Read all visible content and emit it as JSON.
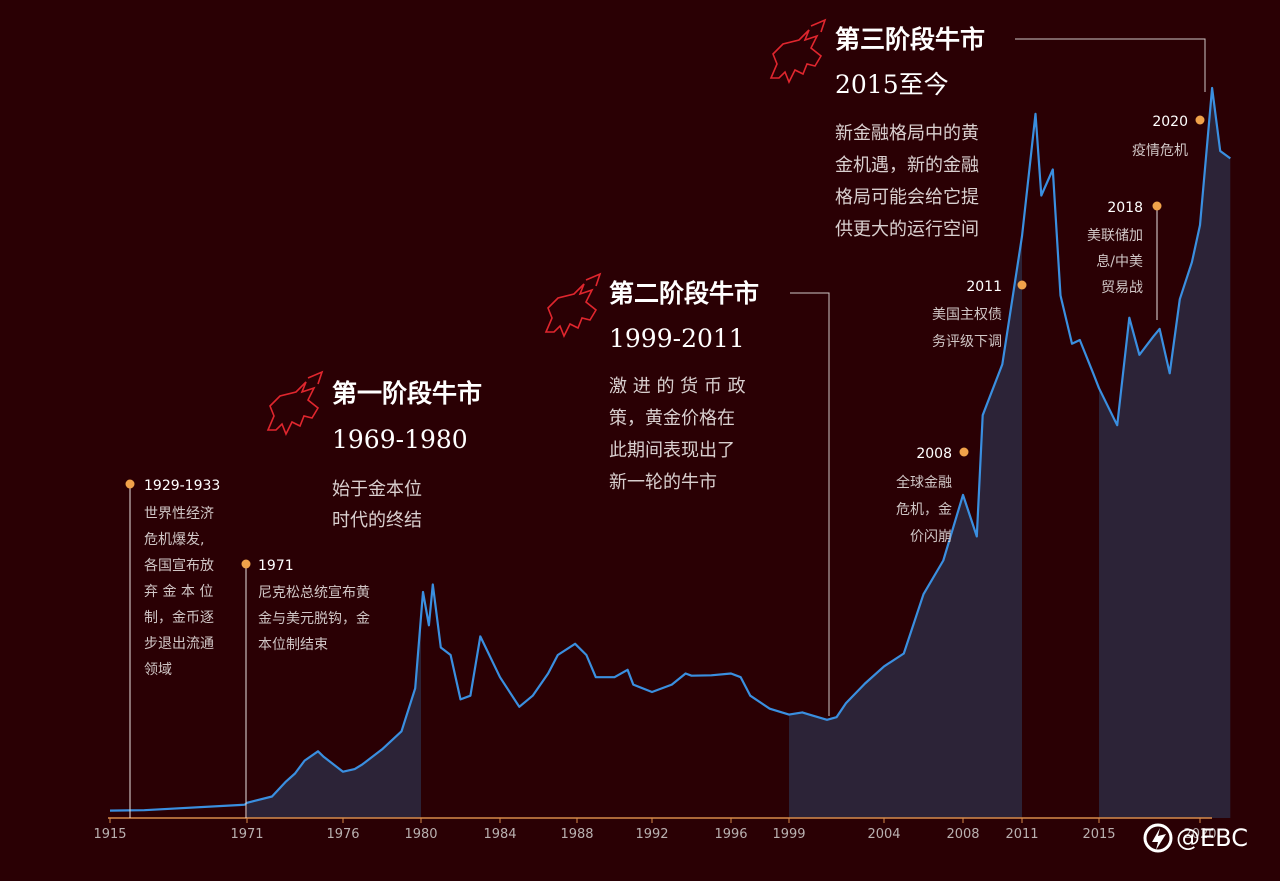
{
  "chart_data": {
    "type": "area",
    "title": "",
    "xlabel": "",
    "ylabel": "",
    "x_ticks": [
      "1915",
      "1971",
      "1976",
      "1980",
      "1984",
      "1988",
      "1992",
      "1996",
      "1999",
      "2004",
      "2008",
      "2011",
      "2015",
      "2020"
    ],
    "series": [
      {
        "values": [
          [
            "1915",
            20
          ],
          [
            "1929",
            21
          ],
          [
            "1968",
            35
          ],
          [
            "1970",
            36
          ],
          [
            "1971",
            41
          ],
          [
            "1972.3",
            58
          ],
          [
            "1973",
            97
          ],
          [
            "1973.5",
            120
          ],
          [
            "1974",
            155
          ],
          [
            "1974.7",
            180
          ],
          [
            "1975",
            165
          ],
          [
            "1976",
            125
          ],
          [
            "1976.6",
            132
          ],
          [
            "1977",
            145
          ],
          [
            "1978",
            185
          ],
          [
            "1979",
            234
          ],
          [
            "1979.7",
            350
          ],
          [
            "1980.1",
            610
          ],
          [
            "1980.4",
            520
          ],
          [
            "1980.6",
            630
          ],
          [
            "1981",
            460
          ],
          [
            "1981.5",
            440
          ],
          [
            "1982",
            320
          ],
          [
            "1982.5",
            330
          ],
          [
            "1983",
            490
          ],
          [
            "1984",
            380
          ],
          [
            "1985",
            300
          ],
          [
            "1985.7",
            330
          ],
          [
            "1986.5",
            390
          ],
          [
            "1987",
            440
          ],
          [
            "1987.9",
            470
          ],
          [
            "1988.5",
            440
          ],
          [
            "1989",
            380
          ],
          [
            "1990",
            380
          ],
          [
            "1990.7",
            400
          ],
          [
            "1991",
            360
          ],
          [
            "1992",
            340
          ],
          [
            "1993",
            360
          ],
          [
            "1993.7",
            390
          ],
          [
            "1994",
            384
          ],
          [
            "1995",
            385
          ],
          [
            "1996",
            390
          ],
          [
            "1996.5",
            380
          ],
          [
            "1997",
            330
          ],
          [
            "1998",
            295
          ],
          [
            "1999",
            279
          ],
          [
            "1999.7",
            285
          ],
          [
            "2000",
            280
          ],
          [
            "2001",
            265
          ],
          [
            "2001.5",
            272
          ],
          [
            "2002",
            310
          ],
          [
            "2003",
            363
          ],
          [
            "2004",
            409
          ],
          [
            "2005",
            444
          ],
          [
            "2006",
            604
          ],
          [
            "2007",
            695
          ],
          [
            "2008",
            872
          ],
          [
            "2008.7",
            760
          ],
          [
            "2009",
            1087
          ],
          [
            "2010",
            1224
          ],
          [
            "2011",
            1570
          ],
          [
            "2011.7",
            1900
          ],
          [
            "2012",
            1680
          ],
          [
            "2012.6",
            1750
          ],
          [
            "2013",
            1410
          ],
          [
            "2013.6",
            1280
          ],
          [
            "2014",
            1290
          ],
          [
            "2014.7",
            1200
          ],
          [
            "2015",
            1160
          ],
          [
            "2015.9",
            1060
          ],
          [
            "2016.5",
            1350
          ],
          [
            "2017",
            1250
          ],
          [
            "2017.7",
            1300
          ],
          [
            "2018",
            1320
          ],
          [
            "2018.5",
            1200
          ],
          [
            "2019",
            1400
          ],
          [
            "2019.6",
            1500
          ],
          [
            "2020",
            1600
          ],
          [
            "2020.6",
            1970
          ],
          [
            "2021",
            1800
          ],
          [
            "2021.5",
            1780
          ]
        ]
      }
    ],
    "highlight_ranges": [
      [
        "1971",
        "1980"
      ],
      [
        "1999",
        "2011"
      ],
      [
        "2015",
        "2021.5"
      ]
    ]
  },
  "phases": [
    {
      "title": "第一阶段牛市",
      "years": "1969-1980",
      "desc": [
        "始于金本位",
        "时代的终结"
      ]
    },
    {
      "title": "第二阶段牛市",
      "years": "1999-2011",
      "desc": [
        "激 进 的 货 币 政",
        "策，黄金价格在",
        "此期间表现出了",
        "新一轮的牛市"
      ]
    },
    {
      "title": "第三阶段牛市",
      "years": "2015至今",
      "desc": [
        "新金融格局中的黄",
        "金机遇，新的金融",
        "格局可能会给它提",
        "供更大的运行空间"
      ]
    }
  ],
  "events": [
    {
      "year": "1929-1933",
      "lines": [
        "世界性经济",
        "危机爆发,",
        "各国宣布放",
        "弃 金 本 位",
        "制，金币逐",
        "步退出流通",
        "领域"
      ]
    },
    {
      "year": "1971",
      "lines": [
        "尼克松总统宣布黄",
        "金与美元脱钩，金",
        "本位制结束"
      ]
    },
    {
      "year": "2008",
      "lines": [
        "全球金融",
        "危机，金",
        "价闪崩"
      ]
    },
    {
      "year": "2011",
      "lines": [
        "美国主权债",
        "务评级下调"
      ]
    },
    {
      "year": "2018",
      "lines": [
        "美联储加",
        "息/中美",
        "贸易战"
      ]
    },
    {
      "year": "2020",
      "lines": [
        "疫情危机"
      ]
    }
  ],
  "colors": {
    "background": "#2a0004",
    "line": "#3a8fe0",
    "fill": "#2c2337",
    "marker": "#f0a24a",
    "axis": "#d88a4a",
    "bull": "#e0262e"
  },
  "watermark": "@EBC",
  "icons": [
    "bull-icon",
    "ebc-logo-icon"
  ]
}
